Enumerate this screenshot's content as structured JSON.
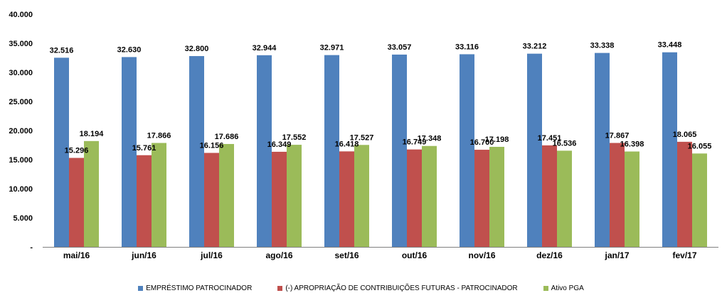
{
  "chart_data": {
    "type": "bar",
    "categories": [
      "mai/16",
      "jun/16",
      "jul/16",
      "ago/16",
      "set/16",
      "out/16",
      "nov/16",
      "dez/16",
      "jan/17",
      "fev/17"
    ],
    "series": [
      {
        "name": "EMPRÉSTIMO PATROCINADOR",
        "color": "#4F81BD",
        "values": [
          32516,
          32630,
          32800,
          32944,
          32971,
          33057,
          33116,
          33212,
          33338,
          33448
        ],
        "labels": [
          "32.516",
          "32.630",
          "32.800",
          "32.944",
          "32.971",
          "33.057",
          "33.116",
          "33.212",
          "33.338",
          "33.448"
        ]
      },
      {
        "name": "(-) APROPRIAÇÃO DE CONTRIBUIÇÕES FUTURAS - PATROCINADOR",
        "color": "#C0504D",
        "values": [
          15296,
          15761,
          16156,
          16349,
          16418,
          16749,
          16700,
          17451,
          17867,
          18065
        ],
        "labels": [
          "15.296",
          "15.761",
          "16.156",
          "16.349",
          "16.418",
          "16.749",
          "16.700",
          "17.451",
          "17.867",
          "18.065"
        ]
      },
      {
        "name": "Ativo PGA",
        "color": "#9BBB59",
        "values": [
          18194,
          17866,
          17686,
          17552,
          17527,
          17348,
          17198,
          16536,
          16398,
          16055
        ],
        "labels": [
          "18.194",
          "17.866",
          "17.686",
          "17.552",
          "17.527",
          "17.348",
          "17.198",
          "16.536",
          "16.398",
          "16.055"
        ]
      }
    ],
    "ylim": [
      0,
      40000
    ],
    "yticks": [
      "-",
      "5.000",
      "10.000",
      "15.000",
      "20.000",
      "25.000",
      "30.000",
      "35.000",
      "40.000"
    ],
    "grid": false,
    "legend": "bottom"
  }
}
